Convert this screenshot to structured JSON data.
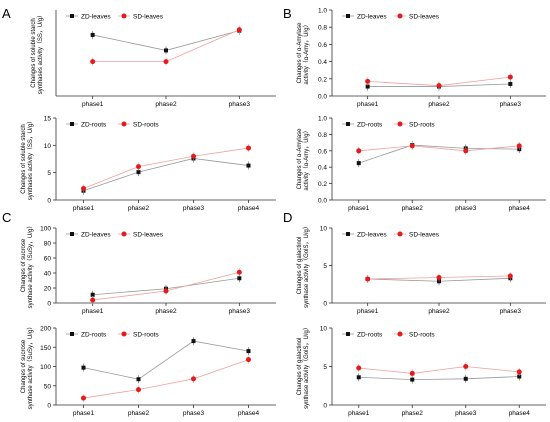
{
  "panels": [
    {
      "letter": "A"
    },
    {
      "letter": "B"
    },
    {
      "letter": "C"
    },
    {
      "letter": "D"
    }
  ],
  "colors": {
    "zd": "#111111",
    "sd": "#e41a1c",
    "zd_line": "#999999",
    "sd_line": "#f0a0a0",
    "axis": "#333333"
  },
  "chart_data": [
    {
      "id": "A-top",
      "panel": "A",
      "type": "line",
      "ylabel": [
        "Changes of soluble starch",
        "synthases activity（SS，U/g）"
      ],
      "categories": [
        "phase1",
        "phase2",
        "phase3"
      ],
      "ylim": [
        0,
        1
      ],
      "yticks": [],
      "grid": false,
      "legend": "top-left",
      "series": [
        {
          "name": "ZD-leaves",
          "values": [
            0.71,
            0.53,
            0.76
          ]
        },
        {
          "name": "SD-leaves",
          "values": [
            0.4,
            0.4,
            0.77
          ]
        }
      ]
    },
    {
      "id": "A-bottom",
      "panel": "A",
      "type": "line",
      "ylabel": [
        "Changes of soluble starch",
        "synthases activity（SS，U/g）"
      ],
      "categories": [
        "phase1",
        "phase2",
        "phase3",
        "phase4"
      ],
      "ylim": [
        0,
        15
      ],
      "yticks": [
        "0",
        "5",
        "10",
        "15"
      ],
      "grid": false,
      "legend": "top-left",
      "series": [
        {
          "name": "ZD-roots",
          "values": [
            1.7,
            5.1,
            7.6,
            6.3
          ]
        },
        {
          "name": "SD-roots",
          "values": [
            2.1,
            6.1,
            8.0,
            9.5
          ]
        }
      ]
    },
    {
      "id": "B-top",
      "panel": "B",
      "type": "line",
      "ylabel": [
        "Changes of α-Amylase",
        "activity（α-Amy，U/g）"
      ],
      "categories": [
        "phase1",
        "phase2",
        "phase3"
      ],
      "ylim": [
        0,
        1.0
      ],
      "yticks": [
        "1.0",
        "0.8",
        "0.6",
        "0.4",
        "0.2",
        "0.0"
      ],
      "grid": false,
      "legend": "top-left",
      "series": [
        {
          "name": "ZD-leaves",
          "values": [
            0.11,
            0.11,
            0.14
          ]
        },
        {
          "name": "SD-leaves",
          "values": [
            0.17,
            0.12,
            0.22
          ]
        }
      ]
    },
    {
      "id": "B-bottom",
      "panel": "B",
      "type": "line",
      "ylabel": [
        "Changes of α-Amylase",
        "activity（α-Amy，U/g）"
      ],
      "categories": [
        "phase1",
        "phase2",
        "phase3",
        "phase4"
      ],
      "ylim": [
        0,
        1.0
      ],
      "yticks": [
        "1.0",
        "0.8",
        "0.6",
        "0.4",
        "0.2",
        "0.0"
      ],
      "grid": false,
      "legend": "top-left",
      "series": [
        {
          "name": "ZD-roots",
          "values": [
            0.45,
            0.67,
            0.63,
            0.62
          ]
        },
        {
          "name": "SD-roots",
          "values": [
            0.6,
            0.66,
            0.6,
            0.66
          ]
        }
      ]
    },
    {
      "id": "C-top",
      "panel": "C",
      "type": "line",
      "ylabel": [
        "Changes of sucrose",
        "synthase activity（SuSy，U/g）"
      ],
      "categories": [
        "phase1",
        "phase2",
        "phase3"
      ],
      "ylim": [
        0,
        100
      ],
      "yticks": [
        "100",
        "80",
        "60",
        "40",
        "20",
        "0"
      ],
      "grid": false,
      "legend": "top-left",
      "series": [
        {
          "name": "ZD-leaves",
          "values": [
            11,
            19,
            33
          ]
        },
        {
          "name": "SD-leaves",
          "values": [
            4,
            16,
            41
          ]
        }
      ]
    },
    {
      "id": "C-bottom",
      "panel": "C",
      "type": "line",
      "ylabel": [
        "Changes of sucrose",
        "synthase activity（SuSy，U/g）"
      ],
      "categories": [
        "phase1",
        "phase2",
        "phase3",
        "phase4"
      ],
      "ylim": [
        0,
        200
      ],
      "yticks": [
        "200",
        "150",
        "100",
        "50",
        "0"
      ],
      "grid": false,
      "legend": "top-left",
      "series": [
        {
          "name": "ZD-roots",
          "values": [
            97,
            67,
            166,
            140
          ]
        },
        {
          "name": "SD-roots",
          "values": [
            18,
            40,
            68,
            118
          ]
        }
      ]
    },
    {
      "id": "D-top",
      "panel": "D",
      "type": "line",
      "ylabel": [
        "Changes of galactinol",
        "synthase activity（GolS，U/g）"
      ],
      "categories": [
        "phase1",
        "phase2",
        "phase3"
      ],
      "ylim": [
        0,
        10
      ],
      "yticks": [
        "10",
        "5",
        "0"
      ],
      "grid": false,
      "legend": "top-left",
      "series": [
        {
          "name": "ZD-leaves",
          "values": [
            3.2,
            2.9,
            3.3
          ]
        },
        {
          "name": "SD-leaves",
          "values": [
            3.2,
            3.4,
            3.6
          ]
        }
      ]
    },
    {
      "id": "D-bottom",
      "panel": "D",
      "type": "line",
      "ylabel": [
        "Changes of galactinol",
        "synthase activity（GolS，U/g）"
      ],
      "categories": [
        "phase1",
        "phase2",
        "phase3",
        "phase4"
      ],
      "ylim": [
        0,
        10
      ],
      "yticks": [
        "10",
        "5",
        "0"
      ],
      "grid": false,
      "legend": "top-left",
      "series": [
        {
          "name": "ZD-roots",
          "values": [
            3.6,
            3.3,
            3.4,
            3.7
          ]
        },
        {
          "name": "SD-roots",
          "values": [
            4.8,
            4.1,
            5.0,
            4.3
          ]
        }
      ]
    }
  ]
}
